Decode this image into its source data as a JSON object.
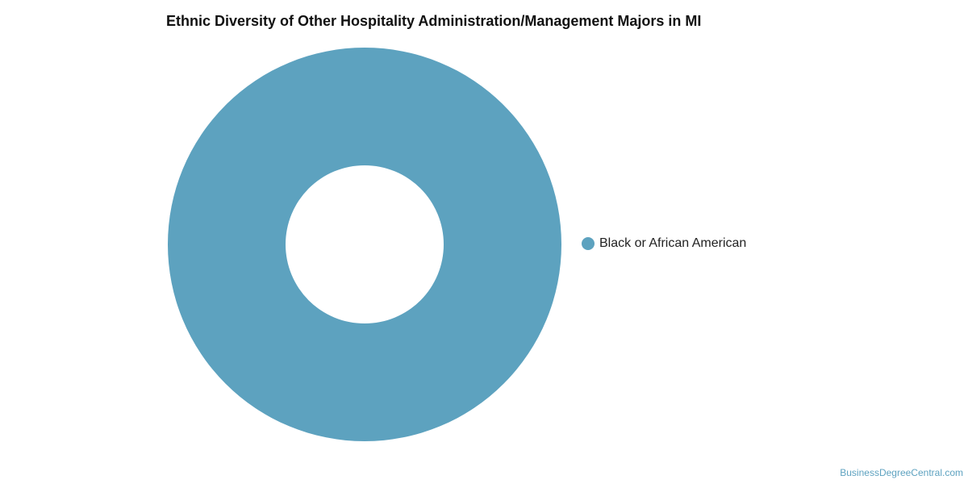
{
  "chart_data": {
    "type": "pie",
    "variant": "donut",
    "title": "Ethnic Diversity of Other Hospitality Administration/Management Majors in MI",
    "categories": [
      "Black or African American"
    ],
    "values": [
      100
    ],
    "colors": [
      "#5da2bf"
    ],
    "legend": {
      "placement": "right",
      "entries": [
        "Black or African American"
      ]
    }
  },
  "watermark": "BusinessDegreeCentral.com"
}
